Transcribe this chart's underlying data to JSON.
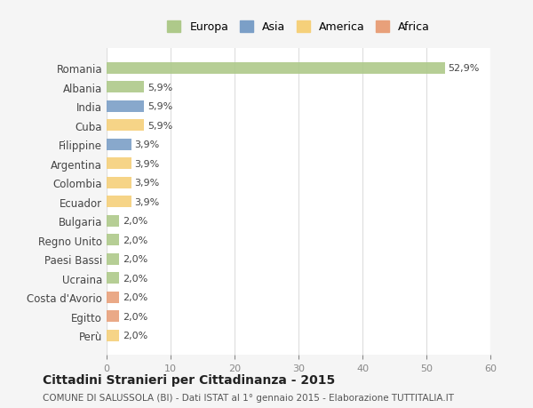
{
  "countries": [
    "Romania",
    "Albania",
    "India",
    "Cuba",
    "Filippine",
    "Argentina",
    "Colombia",
    "Ecuador",
    "Bulgaria",
    "Regno Unito",
    "Paesi Bassi",
    "Ucraina",
    "Costa d'Avorio",
    "Egitto",
    "Perù"
  ],
  "values": [
    52.9,
    5.9,
    5.9,
    5.9,
    3.9,
    3.9,
    3.9,
    3.9,
    2.0,
    2.0,
    2.0,
    2.0,
    2.0,
    2.0,
    2.0
  ],
  "labels": [
    "52,9%",
    "5,9%",
    "5,9%",
    "5,9%",
    "3,9%",
    "3,9%",
    "3,9%",
    "3,9%",
    "2,0%",
    "2,0%",
    "2,0%",
    "2,0%",
    "2,0%",
    "2,0%",
    "2,0%"
  ],
  "colors": [
    "#aec98a",
    "#aec98a",
    "#7b9fc7",
    "#f5d07a",
    "#7b9fc7",
    "#f5d07a",
    "#f5d07a",
    "#f5d07a",
    "#aec98a",
    "#aec98a",
    "#aec98a",
    "#aec98a",
    "#e8a07a",
    "#e8a07a",
    "#f5d07a"
  ],
  "continent_colors": {
    "Europa": "#aec98a",
    "Asia": "#7b9fc7",
    "America": "#f5d07a",
    "Africa": "#e8a07a"
  },
  "xlim": [
    0,
    60
  ],
  "xticks": [
    0,
    10,
    20,
    30,
    40,
    50,
    60
  ],
  "title": "Cittadini Stranieri per Cittadinanza - 2015",
  "subtitle": "COMUNE DI SALUSSOLA (BI) - Dati ISTAT al 1° gennaio 2015 - Elaborazione TUTTITALIA.IT",
  "bg_color": "#f5f5f5",
  "bar_bg_color": "#ffffff",
  "grid_color": "#dddddd"
}
